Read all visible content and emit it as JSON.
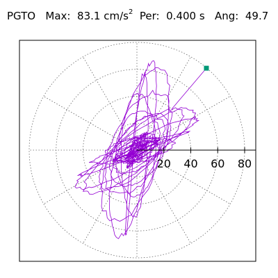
{
  "title": {
    "station": "PGTO",
    "max_label": "Max:",
    "max_value": "83.1",
    "max_unit": "cm/s",
    "max_unit_exp": "2",
    "per_label": "Per:",
    "per_value": "0.400 s",
    "ang_label": "Ang:",
    "ang_value": "49.7"
  },
  "chart_data": {
    "type": "scatter",
    "plot_kind": "polar-particle-motion",
    "grid": "dotted polar grid",
    "radial_ticks": [
      "20",
      "40",
      "60",
      "80"
    ],
    "radial_tick_values": [
      20,
      40,
      60,
      80
    ],
    "radial_max": 80,
    "angular_step_deg": 30,
    "units": "cm/s2",
    "peak": {
      "value": 83.1,
      "angle_deg": 49.7
    },
    "trace_color": "#9400d3",
    "peak_marker_color": "#009977",
    "major_axis_angle_deg": 50,
    "core_amplitude": 12,
    "outer_amplitude": 58
  }
}
